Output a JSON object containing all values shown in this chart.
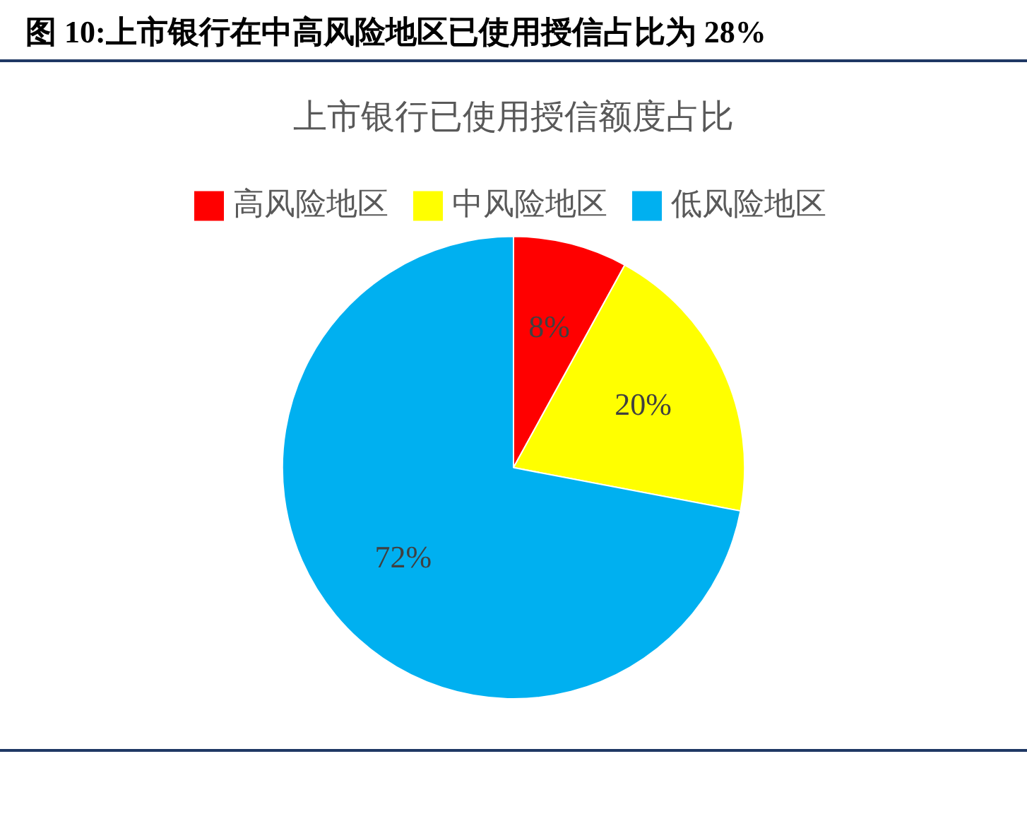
{
  "chart_data": {
    "type": "pie",
    "title": "图 10:上市银行在中高风险地区已使用授信占比为 28%",
    "subtitle": "上市银行已使用授信额度占比",
    "categories": [
      "高风险地区",
      "中风险地区",
      "低风险地区"
    ],
    "values": [
      8,
      20,
      72
    ],
    "colors": [
      "#ff0000",
      "#ffff00",
      "#00b0f0"
    ],
    "value_labels": [
      "8%",
      "20%",
      "72%"
    ],
    "legend": "top"
  }
}
